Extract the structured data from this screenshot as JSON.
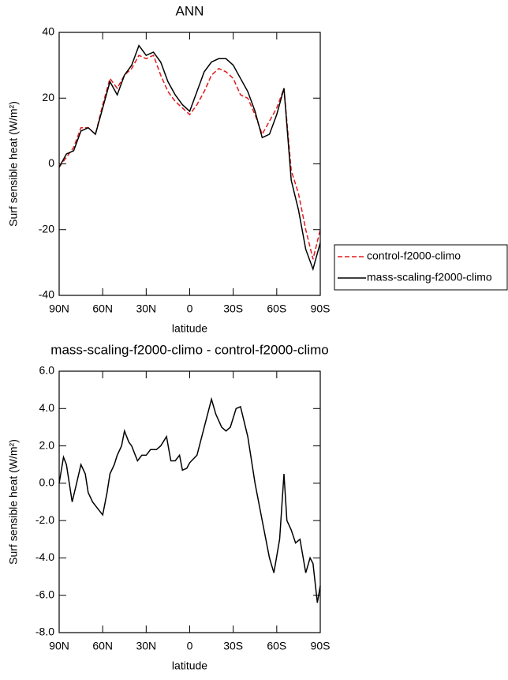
{
  "chart_data": [
    {
      "type": "line",
      "title": "ANN",
      "xlabel": "latitude",
      "ylabel": "Surf sensible heat (W/m²)",
      "xlim": [
        90,
        -90
      ],
      "ylim": [
        -40,
        40
      ],
      "xticks": [
        {
          "value": 90,
          "label": "90N"
        },
        {
          "value": 60,
          "label": "60N"
        },
        {
          "value": 30,
          "label": "30N"
        },
        0,
        {
          "value": -30,
          "label": "30S"
        },
        {
          "value": -60,
          "label": "60S"
        },
        {
          "value": -90,
          "label": "90S"
        }
      ],
      "yticks": [
        -40,
        -20,
        0,
        20,
        40
      ],
      "x": [
        90,
        85,
        80,
        75,
        70,
        65,
        60,
        55,
        50,
        45,
        40,
        35,
        30,
        25,
        20,
        15,
        10,
        5,
        0,
        -5,
        -10,
        -15,
        -20,
        -25,
        -30,
        -35,
        -40,
        -45,
        -50,
        -55,
        -60,
        -65,
        -70,
        -75,
        -80,
        -85,
        -90
      ],
      "series": [
        {
          "name": "control-f2000-climo",
          "color": "#e41a1c",
          "dash": true,
          "values": [
            -1,
            2,
            5,
            11,
            11,
            9,
            18,
            26,
            23,
            27,
            29,
            33,
            32,
            33,
            27,
            22,
            19,
            17,
            15,
            18,
            22,
            27,
            29,
            28,
            26,
            21,
            20,
            15,
            9,
            13,
            17,
            23,
            -2,
            -9,
            -20,
            -29,
            -20
          ]
        },
        {
          "name": "mass-scaling-f2000-climo",
          "color": "#000000",
          "dash": false,
          "values": [
            -1,
            3,
            4,
            10,
            11,
            9,
            17,
            25,
            21,
            27,
            30,
            36,
            33,
            34,
            31,
            25,
            21,
            18,
            16,
            22,
            28,
            31,
            32,
            32,
            30,
            26,
            22,
            16,
            8,
            9,
            15,
            23,
            -5,
            -14,
            -26,
            -32,
            -24
          ]
        }
      ]
    },
    {
      "type": "line",
      "title": "mass-scaling-f2000-climo - control-f2000-climo",
      "xlabel": "latitude",
      "ylabel": "Surf sensible heat (W/m²)",
      "xlim": [
        90,
        -90
      ],
      "ylim": [
        -8,
        6
      ],
      "xticks": [
        {
          "value": 90,
          "label": "90N"
        },
        {
          "value": 60,
          "label": "60N"
        },
        {
          "value": 30,
          "label": "30N"
        },
        0,
        {
          "value": -30,
          "label": "30S"
        },
        {
          "value": -60,
          "label": "60S"
        },
        {
          "value": -90,
          "label": "90S"
        }
      ],
      "yticks": [
        {
          "value": -8,
          "label": "-8.0"
        },
        {
          "value": -6,
          "label": "-6.0"
        },
        {
          "value": -4,
          "label": "-4.0"
        },
        {
          "value": -2,
          "label": "-2.0"
        },
        {
          "value": 0,
          "label": "0.0"
        },
        {
          "value": 2,
          "label": "2.0"
        },
        {
          "value": 4,
          "label": "4.0"
        },
        {
          "value": 6,
          "label": "6.0"
        }
      ],
      "x": [
        90,
        87,
        85,
        81,
        78,
        75,
        72,
        70,
        67,
        64,
        60,
        57,
        55,
        52,
        50,
        47,
        45,
        42,
        40,
        36,
        33,
        30,
        27,
        23,
        20,
        16,
        13,
        10,
        7,
        5,
        2,
        0,
        -5,
        -10,
        -15,
        -18,
        -22,
        -25,
        -28,
        -32,
        -35,
        -40,
        -45,
        -50,
        -55,
        -58,
        -62,
        -65,
        -67,
        -70,
        -73,
        -76,
        -80,
        -83,
        -85,
        -88,
        -90
      ],
      "series": [
        {
          "color": "#000000",
          "dash": false,
          "values": [
            0,
            1.4,
            1,
            -1,
            0,
            1,
            0.5,
            -0.5,
            -1,
            -1.3,
            -1.7,
            -0.5,
            0.5,
            1,
            1.5,
            2,
            2.8,
            2.2,
            2,
            1.2,
            1.5,
            1.5,
            1.8,
            1.8,
            2,
            2.5,
            1.2,
            1.2,
            1.5,
            0.7,
            0.8,
            1.1,
            1.5,
            3,
            4.5,
            3.7,
            3,
            2.8,
            3,
            4,
            4.1,
            2.5,
            0,
            -2,
            -4,
            -4.8,
            -3,
            0.5,
            -2,
            -2.5,
            -3.2,
            -3,
            -4.8,
            -4,
            -4.3,
            -6.4,
            -5.5
          ]
        }
      ]
    }
  ]
}
